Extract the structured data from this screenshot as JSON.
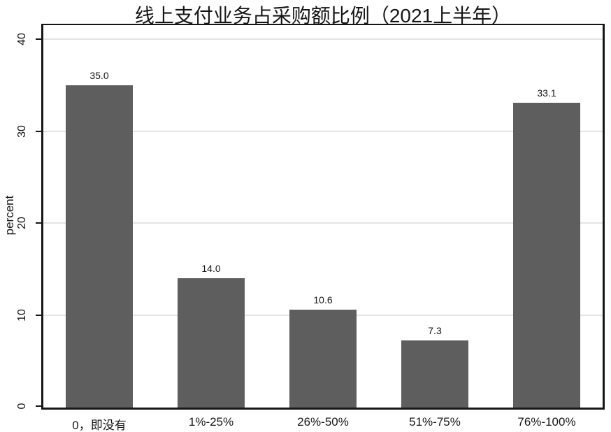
{
  "chart_data": {
    "type": "bar",
    "title": "线上支付业务占采购额比例（2021上半年）",
    "categories": [
      "0，即没有",
      "1%-25%",
      "26%-50%",
      "51%-75%",
      "76%-100%"
    ],
    "values": [
      35.0,
      14.0,
      10.6,
      7.3,
      33.1
    ],
    "value_labels": [
      "35.0",
      "14.0",
      "10.6",
      "7.3",
      "33.1"
    ],
    "xlabel": "",
    "ylabel": "percent",
    "ylim": [
      0,
      40
    ],
    "ylim_render": [
      0,
      41.5
    ],
    "yticks": [
      0,
      10,
      20,
      30,
      40
    ],
    "grid": true,
    "legend": "none",
    "bar_color": "#5e5e5e",
    "axis_color": "#161616",
    "gridline_color": "#e4e4e4",
    "background_color": "#ffffff"
  }
}
